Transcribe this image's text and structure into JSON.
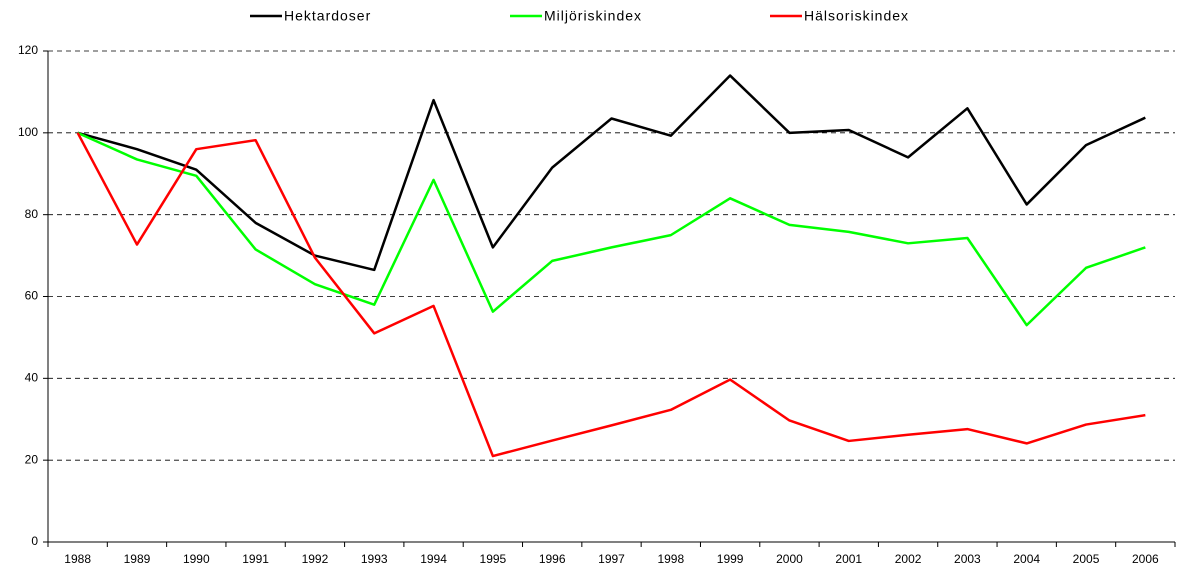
{
  "chart_data": {
    "type": "line",
    "categories": [
      "1988",
      "1989",
      "1990",
      "1991",
      "1992",
      "1993",
      "1994",
      "1995",
      "1996",
      "1997",
      "1998",
      "1999",
      "2000",
      "2001",
      "2002",
      "2003",
      "2004",
      "2005",
      "2006"
    ],
    "series": [
      {
        "name": "Hektardoser",
        "color": "#000000",
        "values": [
          100,
          96,
          91,
          78,
          70,
          66.5,
          108,
          72,
          91.5,
          103.5,
          99.3,
          114,
          100,
          100.7,
          94,
          106,
          82.5,
          97,
          103.7
        ]
      },
      {
        "name": "Miljöriskindex",
        "color": "#00ff00",
        "values": [
          100,
          93.5,
          89.5,
          71.5,
          63,
          58,
          88.5,
          56.3,
          68.7,
          72,
          75,
          84,
          77.5,
          75.8,
          73,
          74.3,
          53,
          67,
          72
        ]
      },
      {
        "name": "Hälsoriskindex",
        "color": "#ff0000",
        "values": [
          100,
          72.7,
          96,
          98.2,
          69.5,
          51,
          57.7,
          21,
          24.8,
          28.5,
          32.3,
          39.7,
          29.7,
          24.7,
          26.2,
          27.6,
          24.1,
          28.7,
          31
        ]
      }
    ],
    "ylim": [
      0,
      120
    ],
    "yticks": [
      0,
      20,
      40,
      60,
      80,
      100,
      120
    ],
    "grid": true,
    "legend": "top"
  }
}
